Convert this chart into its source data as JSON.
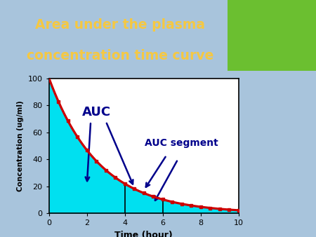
{
  "title_line1": "Area under the plasma",
  "title_line2": "concentration time curve",
  "title_color": "#F5C842",
  "title_bg_color": "#29B8E8",
  "right_bg_color": "#6BBF30",
  "plot_bg_color": "#FFFFFF",
  "outer_bg_left": "#A8C4DC",
  "outer_bg_right": "#C0D4E8",
  "xlabel": "Time (hour)",
  "ylabel": "Concentration (ug/ml)",
  "xlim": [
    0,
    10
  ],
  "ylim": [
    0,
    100
  ],
  "xticks": [
    0,
    2,
    4,
    6,
    8,
    10
  ],
  "yticks": [
    0,
    20,
    40,
    60,
    80,
    100
  ],
  "curve_color": "#CC0000",
  "fill_color": "#00E0F0",
  "segment_x1": 4,
  "segment_x2": 6,
  "auc_label": "AUC",
  "auc_segment_label": "AUC segment",
  "arrow_color": "#00008B",
  "decay_constant": 0.38,
  "initial_conc": 100,
  "marker_times": [
    0.5,
    1,
    1.5,
    2,
    2.5,
    3,
    3.5,
    4,
    4.5,
    5,
    5.5,
    6,
    6.5,
    7,
    7.5,
    8,
    8.5,
    9,
    9.5,
    10
  ]
}
